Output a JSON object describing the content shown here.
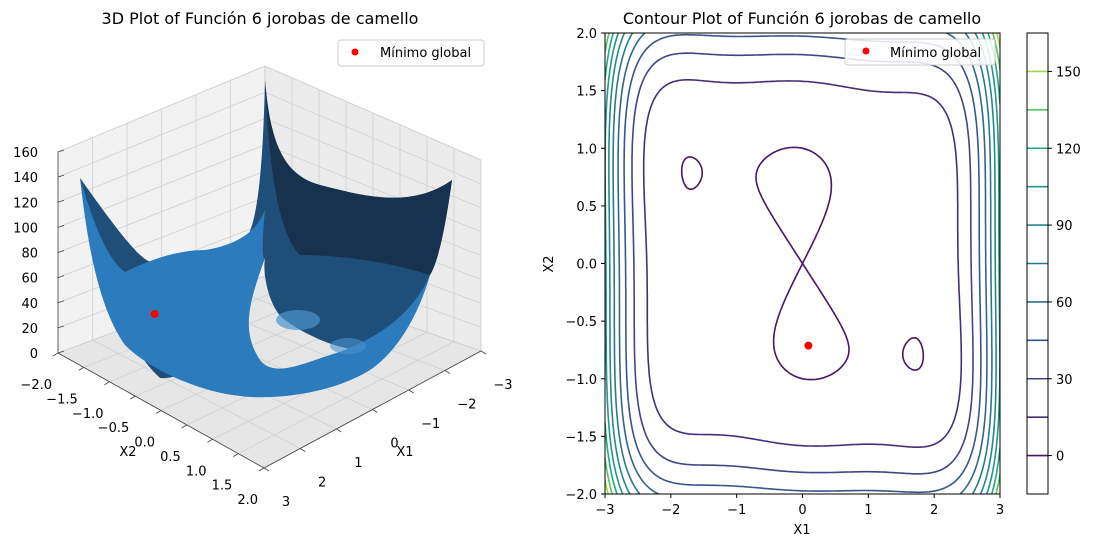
{
  "chart_data": [
    {
      "type": "surface3d",
      "title": "3D Plot of Función 6 jorobas de camello",
      "xlabel": "X1",
      "ylabel": "X2",
      "zlabel": "",
      "xlim": [
        -3,
        3
      ],
      "ylim": [
        -2,
        2
      ],
      "zlim": [
        0,
        160
      ],
      "x_ticks": [
        "−3",
        "−2",
        "−1",
        "0",
        "1",
        "2",
        "3"
      ],
      "y_ticks": [
        "−2.0",
        "−1.5",
        "−1.0",
        "−0.5",
        "0.0",
        "0.5",
        "1.0",
        "1.5",
        "2.0"
      ],
      "z_ticks": [
        "0",
        "20",
        "40",
        "60",
        "80",
        "100",
        "120",
        "140",
        "160"
      ],
      "surface_color": "#1f77b4",
      "marker": {
        "name": "Mínimo global",
        "x": 0.0898,
        "y": -0.7126,
        "z": -1.0316,
        "color": "#ff0000"
      },
      "legend": {
        "position": "upper right",
        "label": "Mínimo global"
      }
    },
    {
      "type": "contour",
      "title": "Contour Plot of Función 6 jorobas de camello",
      "xlabel": "X1",
      "ylabel": "X2",
      "xlim": [
        -3,
        3
      ],
      "ylim": [
        -2,
        2
      ],
      "x_ticks": [
        "−3",
        "−2",
        "−1",
        "0",
        "1",
        "2",
        "3"
      ],
      "y_ticks": [
        "−2.0",
        "−1.5",
        "−1.0",
        "−0.5",
        "0.0",
        "0.5",
        "1.0",
        "1.5",
        "2.0"
      ],
      "levels": [
        -15,
        0,
        15,
        30,
        45,
        60,
        75,
        90,
        105,
        120,
        135,
        150,
        165
      ],
      "colorbar_ticks": [
        "0",
        "30",
        "60",
        "90",
        "120",
        "150"
      ],
      "colormap": "viridis",
      "marker": {
        "name": "Mínimo global",
        "x": 0.0898,
        "y": -0.7126,
        "color": "#ff0000"
      },
      "legend": {
        "position": "upper right",
        "label": "Mínimo global"
      }
    }
  ]
}
